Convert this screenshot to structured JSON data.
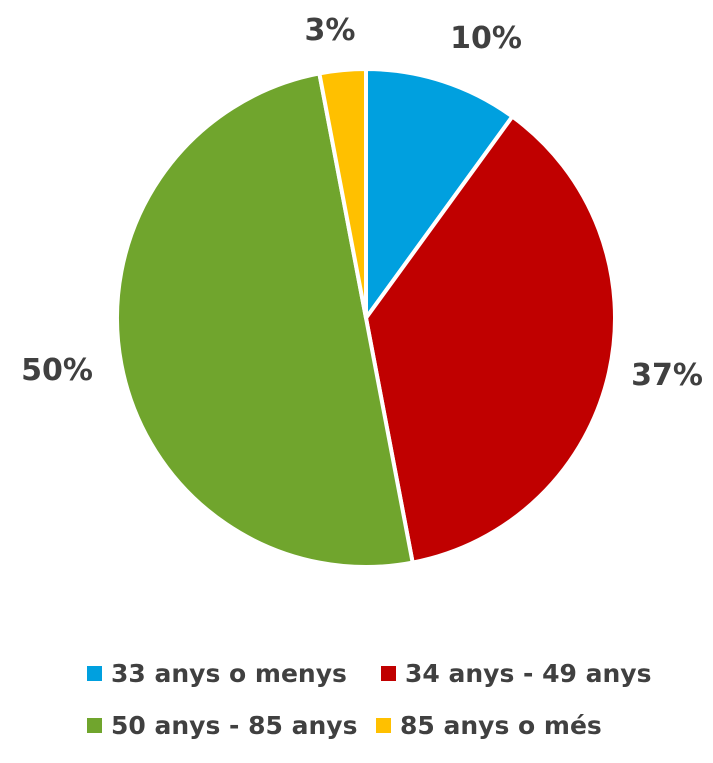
{
  "chart_data": {
    "type": "pie",
    "categories": [
      "33 anys o menys",
      "34 anys - 49 anys",
      "50 anys - 85 anys",
      "85 anys o més"
    ],
    "values": [
      10,
      37,
      50,
      3
    ],
    "data_labels": [
      "10%",
      "37%",
      "50%",
      "3%"
    ],
    "colors": [
      "#00A0DF",
      "#C00000",
      "#70A52D",
      "#FFC000"
    ],
    "start_angle": "12 o'clock",
    "direction": "clockwise",
    "legend": {
      "position": "bottom",
      "entries": [
        {
          "label": "33 anys o menys",
          "color": "#00A0DF"
        },
        {
          "label": "34 anys - 49 anys",
          "color": "#C00000"
        },
        {
          "label": "50 anys - 85 anys",
          "color": "#70A52D"
        },
        {
          "label": "85 anys o més",
          "color": "#FFC000"
        }
      ]
    }
  }
}
